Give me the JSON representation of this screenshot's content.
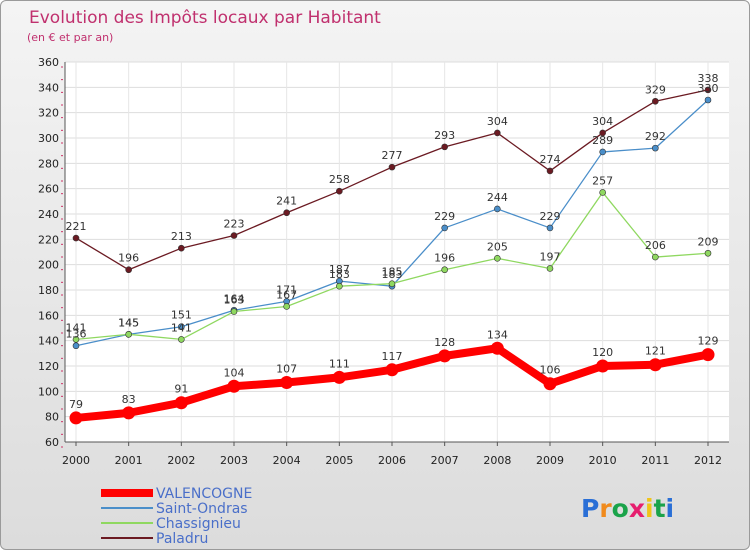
{
  "chart_data": {
    "type": "line",
    "title": "Evolution des Impôts locaux par Habitant",
    "subtitle": "(en € et par an)",
    "x": [
      2000,
      2001,
      2002,
      2003,
      2004,
      2005,
      2006,
      2007,
      2008,
      2009,
      2010,
      2011,
      2012
    ],
    "ylim": [
      60,
      360
    ],
    "ytick_step": 20,
    "grid": true,
    "legend_position": "bottom-left",
    "series": [
      {
        "name": "Paladru",
        "color": "#6b1a22",
        "values": [
          221,
          196,
          213,
          223,
          241,
          258,
          277,
          293,
          304,
          274,
          304,
          329,
          338
        ]
      },
      {
        "name": "Saint-Ondras",
        "color": "#4a8ec9",
        "values": [
          136,
          145,
          151,
          164,
          171,
          187,
          183,
          229,
          244,
          229,
          289,
          292,
          330
        ]
      },
      {
        "name": "Chassignieu",
        "color": "#8fd860",
        "values": [
          141,
          145,
          141,
          163,
          167,
          183,
          185,
          196,
          205,
          197,
          257,
          206,
          209
        ]
      },
      {
        "name": "VALENCOGNE",
        "color": "#ff0000",
        "values": [
          79,
          83,
          91,
          104,
          107,
          111,
          117,
          128,
          134,
          106,
          120,
          121,
          129
        ]
      }
    ]
  },
  "logo": {
    "letters": [
      "P",
      "r",
      "o",
      "x",
      "i",
      "t",
      "i"
    ],
    "colors": [
      "#2a6fd6",
      "#f08a1c",
      "#1aa34a",
      "#e61e6e",
      "#f0c419",
      "#1aa34a",
      "#2a6fd6"
    ]
  }
}
